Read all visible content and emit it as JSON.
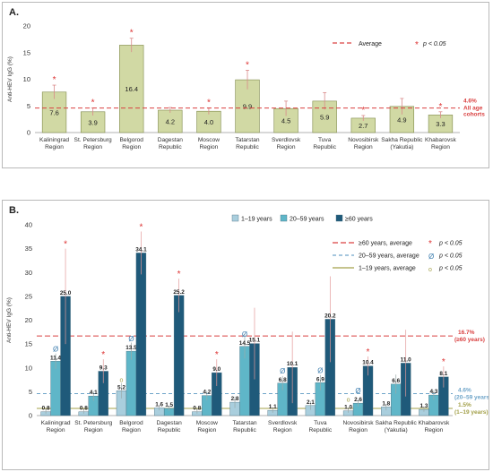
{
  "chart_data": [
    {
      "type": "bar",
      "panel_label": "A.",
      "ylabel": "Anti-HEV IgG (%)",
      "ylim": [
        0,
        20
      ],
      "yticks": [
        "0",
        "5",
        "10",
        "15",
        "20"
      ],
      "categories": [
        "Kaliningrad Region",
        "St. Petersburg Region",
        "Belgorod Region",
        "Dagestan Republic",
        "Moscow Region",
        "Tatarstan Republic",
        "Sverdlovsk Region",
        "Tuva Republic",
        "Novosibirsk Region",
        "Sakha Republic (Yakutia)",
        "Khabarovsk Region"
      ],
      "series": [
        {
          "values": [
            7.6,
            3.9,
            16.4,
            4.2,
            4.0,
            9.9,
            4.5,
            5.9,
            2.7,
            4.9,
            3.3
          ],
          "labels": [
            "7.6",
            "3.9",
            "16.4",
            "4.2",
            "4.0",
            "9.9",
            "4.5",
            "5.9",
            "2.7",
            "4.9",
            "3.3"
          ],
          "error": [
            1.3,
            0.7,
            1.3,
            0.5,
            0.6,
            1.8,
            1.4,
            1.6,
            0.5,
            1.5,
            0.6
          ],
          "significant": [
            true,
            true,
            true,
            false,
            true,
            true,
            false,
            false,
            true,
            false,
            true
          ],
          "color": "#d1d9a4"
        }
      ],
      "reference_line": {
        "value": 4.6,
        "label": "4.6%",
        "sublabel": "All age cohorts",
        "color": "#d94040"
      },
      "legend": {
        "average_label": "Average",
        "significance_label": "p < 0.05"
      },
      "grid": false
    },
    {
      "type": "bar",
      "panel_label": "B.",
      "ylabel": "Anti-HEV IgG (%)",
      "ylim": [
        0,
        40
      ],
      "yticks": [
        "0",
        "5",
        "10",
        "15",
        "20",
        "25",
        "30",
        "35",
        "40"
      ],
      "categories": [
        "Kaliningrad Region",
        "St. Petersburg Region",
        "Belgorod Region",
        "Dagestan Republic",
        "Moscow Region",
        "Tatarstan Republic",
        "Sverdlovsk Region",
        "Tuva Republic",
        "Novosibirsk Region",
        "Sakha Republic (Yakutia)",
        "Khabarovsk Region"
      ],
      "series": [
        {
          "name": "1–19 years",
          "values": [
            0.8,
            0.8,
            5.2,
            1.6,
            0.8,
            2.8,
            1.1,
            2.1,
            1.0,
            1.8,
            1.3
          ],
          "labels": [
            "0.8",
            "0.8",
            "5.2",
            "1.6",
            "0.8",
            "2.8",
            "1.1",
            "2.1",
            "1.0",
            "1.8",
            "1.3"
          ],
          "error": [
            0.4,
            0.4,
            1.6,
            0.5,
            0.4,
            1.2,
            0.5,
            0.9,
            0.4,
            0.7,
            0.5
          ],
          "significance_marker": [
            "",
            "",
            "o",
            "",
            "",
            "",
            "",
            "",
            "o",
            "",
            ""
          ],
          "color": "#a9cedd"
        },
        {
          "name": "20–59 years",
          "values": [
            11.4,
            4.1,
            13.5,
            1.5,
            4.2,
            14.5,
            6.8,
            6.9,
            2.6,
            6.6,
            4.3
          ],
          "labels": [
            "11.4",
            "4.1",
            "13.5",
            "1.5",
            "4.2",
            "14.5",
            "6.8",
            "6.9",
            "2.6",
            "6.6",
            "4.3"
          ],
          "error": [
            1.6,
            1.0,
            1.8,
            0.5,
            1.0,
            2.5,
            1.5,
            1.6,
            0.7,
            2.0,
            1.0
          ],
          "significance_marker": [
            "Ø",
            "",
            "Ø",
            "",
            "",
            "Ø",
            "Ø",
            "Ø",
            "Ø",
            "",
            ""
          ],
          "color": "#5fb6c8"
        },
        {
          "name": "≥60 years",
          "values": [
            25.0,
            9.3,
            34.1,
            25.2,
            9.0,
            15.1,
            10.1,
            20.2,
            10.4,
            11.0,
            8.1
          ],
          "labels": [
            "25.0",
            "9.3",
            "34.1",
            "25.2",
            "9.0",
            "15.1",
            "10.1",
            "20.2",
            "10.4",
            "11.0",
            "8.1"
          ],
          "error": [
            10.0,
            2.5,
            4.5,
            3.5,
            2.8,
            7.5,
            7.5,
            9.0,
            2.0,
            7.0,
            2.2
          ],
          "significance_marker": [
            "*",
            "*",
            "*",
            "*",
            "*",
            "",
            "",
            "",
            "*",
            "",
            "*"
          ],
          "color": "#1f5a7a"
        }
      ],
      "reference_lines": [
        {
          "series": "≥60 years",
          "value": 16.7,
          "label": "16.7%",
          "sublabel": "(≥60 years)",
          "color": "#d94040"
        },
        {
          "series": "20–59 years",
          "value": 4.6,
          "label": "4.6%",
          "sublabel": "(20–59 years)",
          "color": "#6fa5c9"
        },
        {
          "series": "1–19 years",
          "value": 1.5,
          "label": "1.5%",
          "sublabel": "(1–19 years)",
          "color": "#a3a04a"
        }
      ],
      "legend": {
        "series_labels": [
          "1–19 years",
          "20–59 years",
          "≥60 years"
        ],
        "average_labels": [
          "≥60 years, average",
          "20–59 years, average",
          "1–19 years, average"
        ],
        "significance_label": "p < 0.05"
      },
      "grid": false
    }
  ]
}
